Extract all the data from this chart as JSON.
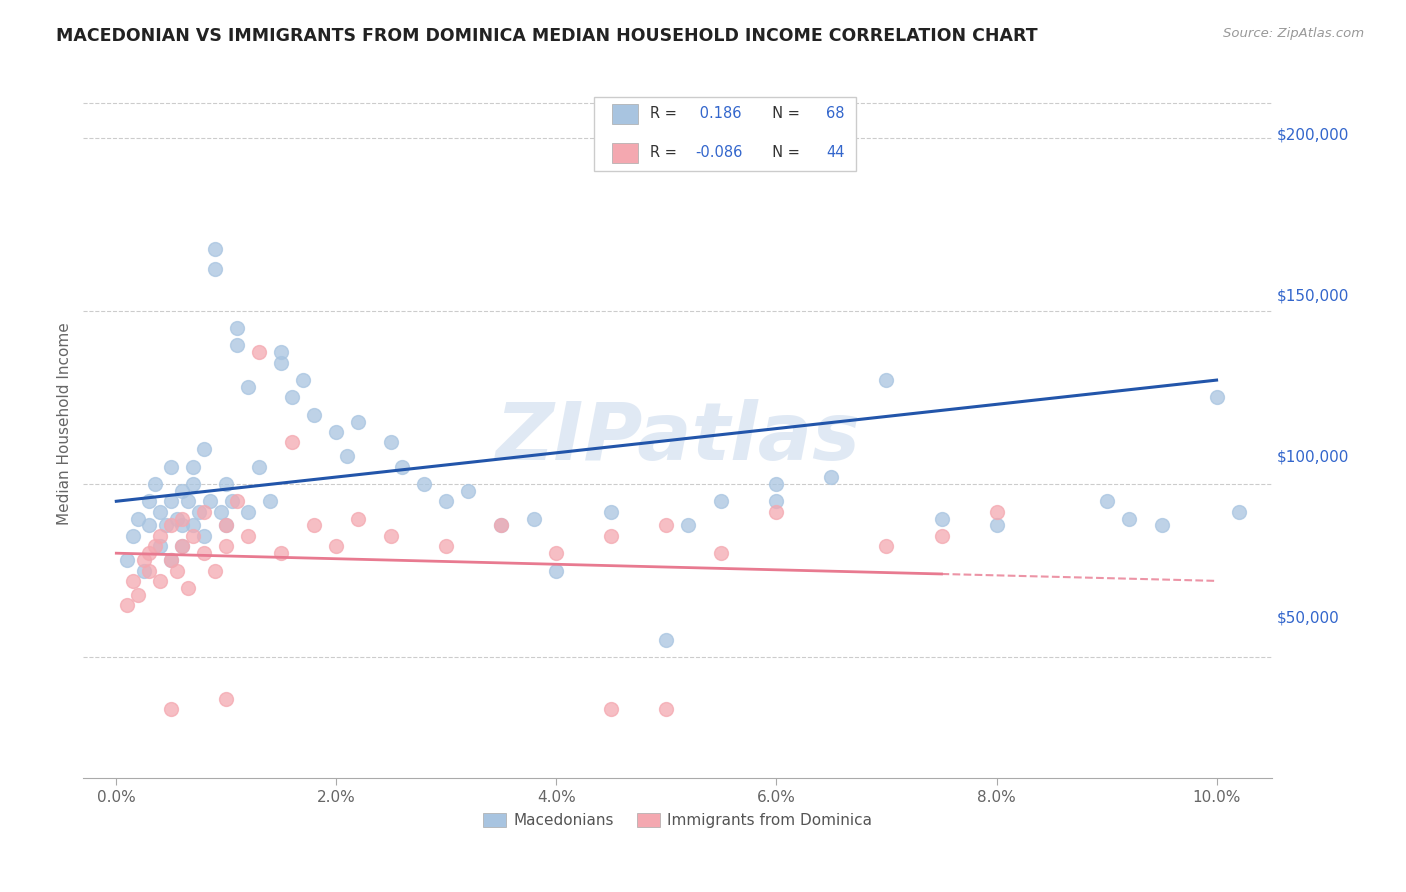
{
  "title": "MACEDONIAN VS IMMIGRANTS FROM DOMINICA MEDIAN HOUSEHOLD INCOME CORRELATION CHART",
  "source": "Source: ZipAtlas.com",
  "xlabel_ticks": [
    "0.0%",
    "2.0%",
    "4.0%",
    "6.0%",
    "8.0%",
    "10.0%"
  ],
  "xlabel_vals": [
    0.0,
    2.0,
    4.0,
    6.0,
    8.0,
    10.0
  ],
  "ylabel": "Median Household Income",
  "ylabel_ticks": [
    0,
    50000,
    100000,
    150000,
    200000
  ],
  "ylabel_labels": [
    "",
    "$50,000",
    "$100,000",
    "$150,000",
    "$200,000"
  ],
  "xlim": [
    -0.3,
    10.5
  ],
  "ylim": [
    15000,
    220000
  ],
  "blue_r": 0.186,
  "blue_n": 68,
  "pink_r": -0.086,
  "pink_n": 44,
  "blue_color": "#A8C4E0",
  "pink_color": "#F4A8B0",
  "blue_line_color": "#2255AA",
  "pink_line_color": "#E87A90",
  "watermark": "ZIPatlas",
  "blue_line_x0": 0.0,
  "blue_line_y0": 95000,
  "blue_line_x1": 10.0,
  "blue_line_y1": 130000,
  "pink_line_x0": 0.0,
  "pink_line_y0": 80000,
  "pink_line_x1": 10.0,
  "pink_line_y1": 72000,
  "pink_solid_end": 7.5,
  "blue_scatter_x": [
    0.1,
    0.15,
    0.2,
    0.25,
    0.3,
    0.3,
    0.35,
    0.4,
    0.4,
    0.45,
    0.5,
    0.5,
    0.5,
    0.55,
    0.6,
    0.6,
    0.6,
    0.65,
    0.7,
    0.7,
    0.7,
    0.75,
    0.8,
    0.8,
    0.85,
    0.9,
    0.9,
    0.95,
    1.0,
    1.0,
    1.05,
    1.1,
    1.1,
    1.2,
    1.2,
    1.3,
    1.4,
    1.5,
    1.5,
    1.6,
    1.7,
    1.8,
    2.0,
    2.1,
    2.2,
    2.5,
    2.6,
    2.8,
    3.0,
    3.2,
    3.5,
    3.8,
    4.0,
    4.5,
    5.0,
    5.2,
    5.5,
    6.0,
    6.0,
    6.5,
    7.0,
    7.5,
    8.0,
    9.0,
    9.2,
    9.5,
    10.0,
    10.2
  ],
  "blue_scatter_y": [
    78000,
    85000,
    90000,
    75000,
    95000,
    88000,
    100000,
    82000,
    92000,
    88000,
    95000,
    105000,
    78000,
    90000,
    88000,
    98000,
    82000,
    95000,
    100000,
    88000,
    105000,
    92000,
    110000,
    85000,
    95000,
    162000,
    168000,
    92000,
    88000,
    100000,
    95000,
    145000,
    140000,
    128000,
    92000,
    105000,
    95000,
    135000,
    138000,
    125000,
    130000,
    120000,
    115000,
    108000,
    118000,
    112000,
    105000,
    100000,
    95000,
    98000,
    88000,
    90000,
    75000,
    92000,
    55000,
    88000,
    95000,
    100000,
    95000,
    102000,
    130000,
    90000,
    88000,
    95000,
    90000,
    88000,
    125000,
    92000
  ],
  "pink_scatter_x": [
    0.1,
    0.15,
    0.2,
    0.25,
    0.3,
    0.3,
    0.35,
    0.4,
    0.4,
    0.5,
    0.5,
    0.55,
    0.6,
    0.6,
    0.65,
    0.7,
    0.8,
    0.8,
    0.9,
    1.0,
    1.0,
    1.1,
    1.2,
    1.3,
    1.5,
    1.6,
    1.8,
    2.0,
    2.2,
    2.5,
    3.0,
    3.5,
    4.0,
    4.5,
    5.0,
    5.5,
    6.0,
    7.0,
    7.5,
    8.0,
    0.5,
    1.0,
    4.5,
    5.0
  ],
  "pink_scatter_y": [
    65000,
    72000,
    68000,
    78000,
    75000,
    80000,
    82000,
    72000,
    85000,
    78000,
    88000,
    75000,
    82000,
    90000,
    70000,
    85000,
    80000,
    92000,
    75000,
    88000,
    82000,
    95000,
    85000,
    138000,
    80000,
    112000,
    88000,
    82000,
    90000,
    85000,
    82000,
    88000,
    80000,
    85000,
    88000,
    80000,
    92000,
    82000,
    85000,
    92000,
    35000,
    38000,
    35000,
    35000
  ]
}
